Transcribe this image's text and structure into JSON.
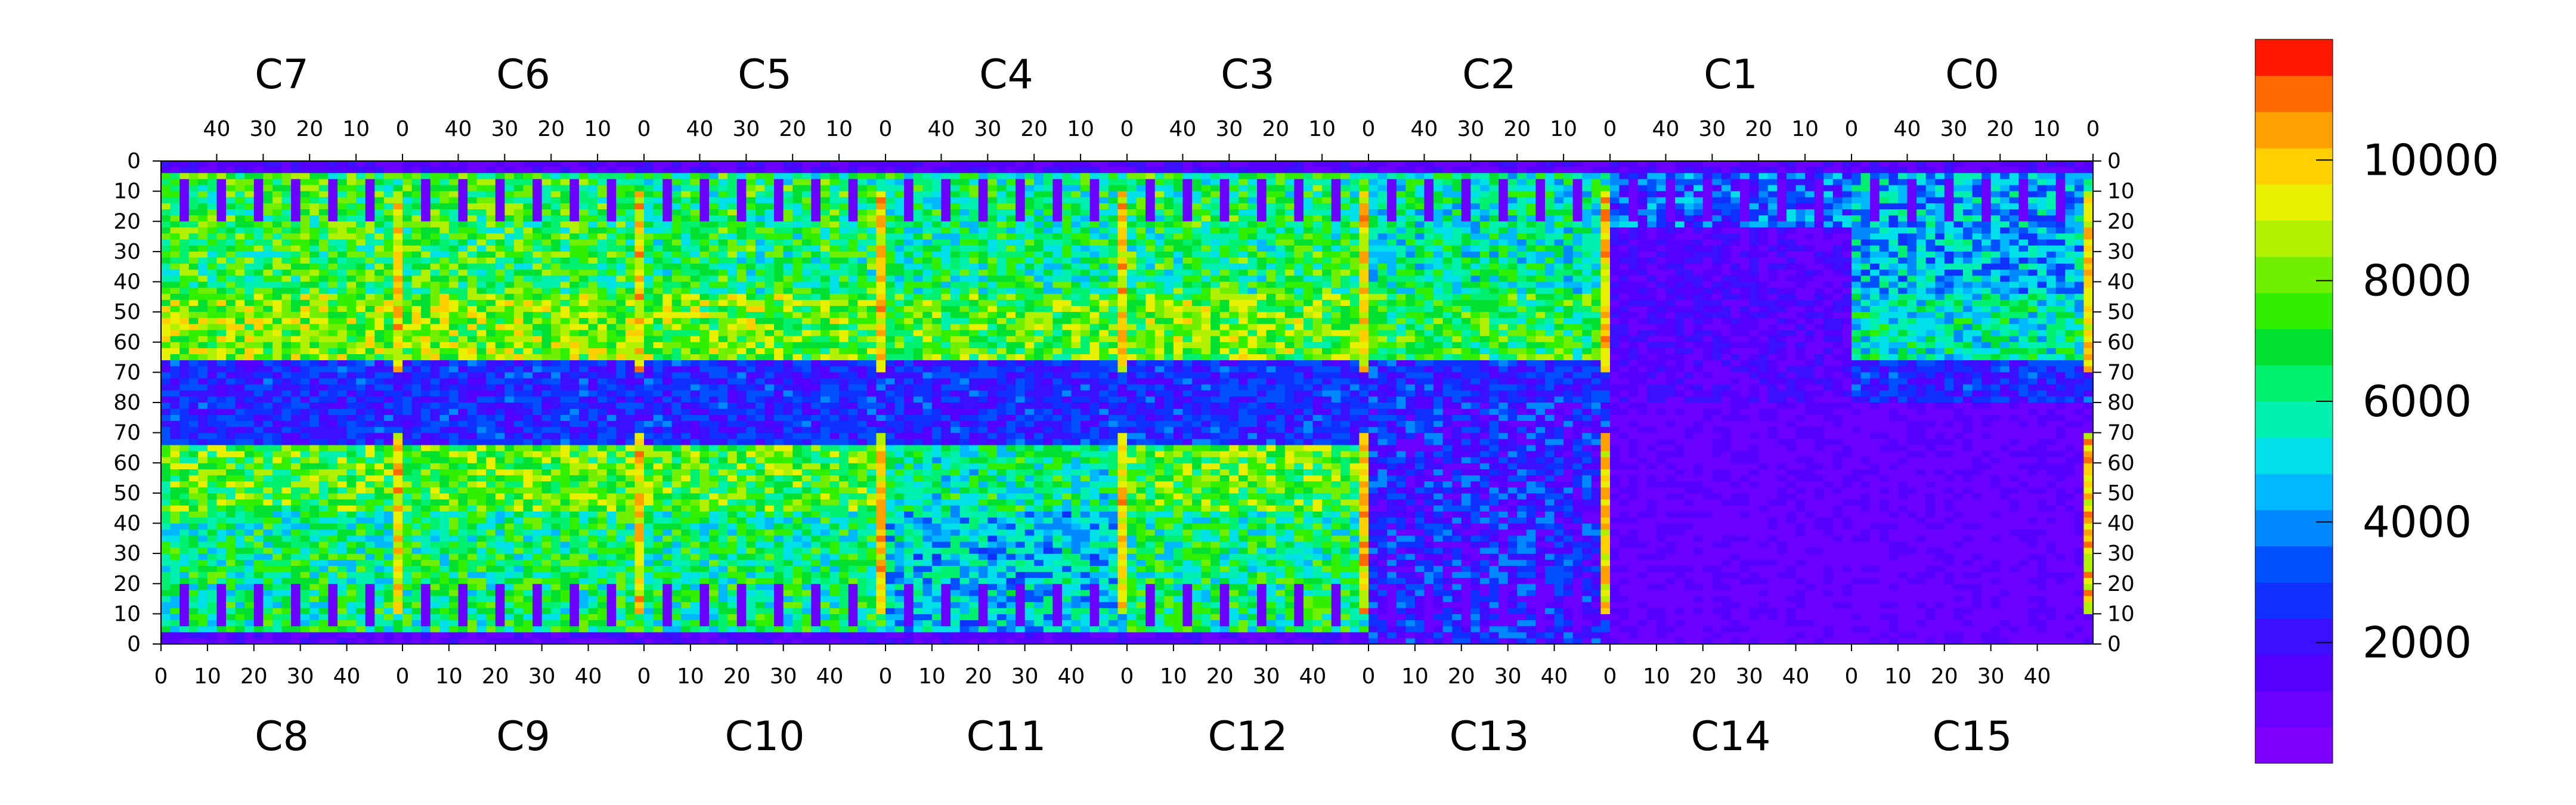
{
  "chart_data": {
    "type": "heatmap",
    "title": "",
    "xlabel": "",
    "ylabel": "",
    "top_chip_labels": [
      "C7",
      "C6",
      "C5",
      "C4",
      "C3",
      "C2",
      "C1",
      "C0"
    ],
    "bottom_chip_labels": [
      "C8",
      "C9",
      "C10",
      "C11",
      "C12",
      "C13",
      "C14",
      "C15"
    ],
    "top_tick_labels": [
      "40",
      "30",
      "20",
      "10",
      "0"
    ],
    "bottom_tick_labels": [
      "0",
      "10",
      "20",
      "30",
      "40"
    ],
    "y_tick_labels": [
      "0",
      "10",
      "20",
      "30",
      "40",
      "50",
      "60",
      "70",
      "80",
      "70",
      "60",
      "50",
      "40",
      "30",
      "20",
      "10",
      "0"
    ],
    "colorbar": {
      "range": [
        0,
        12000
      ],
      "ticks": [
        2000,
        4000,
        6000,
        8000,
        10000
      ],
      "tick_labels": [
        "2000",
        "4000",
        "6000",
        "8000",
        "10000"
      ],
      "colors": [
        "#7f00ff",
        "#6a00ff",
        "#5500ff",
        "#3a10ff",
        "#1030ff",
        "#0050ff",
        "#0088ff",
        "#00b8ff",
        "#00e0e8",
        "#00f0b0",
        "#00f070",
        "#00e030",
        "#30f000",
        "#70f000",
        "#b0f000",
        "#e8f000",
        "#ffd000",
        "#ffa000",
        "#ff6a00",
        "#ff1800"
      ]
    },
    "chips": {
      "columns_per_chip": 52,
      "rows_per_half": 80,
      "value_range_note": "approx 0-12000 counts; hot (red) bands at chip column 0 boundaries in C2-C7, C9-C12; low-occupancy (violet) regions in C1/C13/C14/C15 and central band rows 65-80",
      "approx_levels": {
        "background_low": 600,
        "blue_band": 2500,
        "green_region": 6000,
        "yellow_region": 8500,
        "hot_edge_columns": 11000
      }
    }
  }
}
